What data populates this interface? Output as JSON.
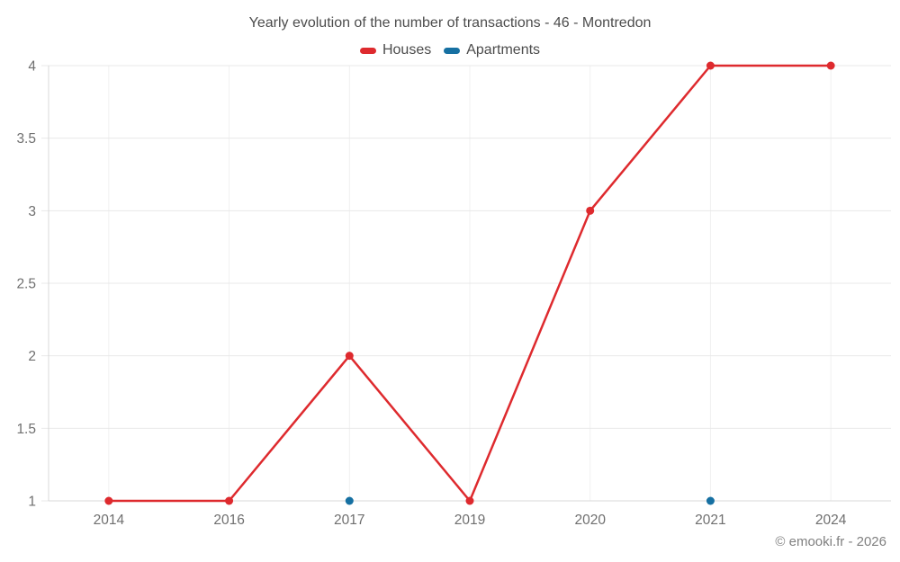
{
  "chart": {
    "watermark": "© emooki.fr - 2026"
  },
  "chart_data": {
    "type": "line",
    "title": "Yearly evolution of the number of transactions - 46 - Montredon",
    "categories": [
      "2014",
      "2016",
      "2017",
      "2019",
      "2020",
      "2021",
      "2024"
    ],
    "series": [
      {
        "name": "Houses",
        "color": "#de2a2e",
        "values": [
          1,
          1,
          2,
          1,
          3,
          4,
          4
        ]
      },
      {
        "name": "Apartments",
        "color": "#1670a2",
        "values": [
          null,
          null,
          1,
          null,
          null,
          1,
          null
        ]
      }
    ],
    "xlabel": "",
    "ylabel": "",
    "ylim": [
      1,
      4
    ],
    "yticks": [
      1,
      1.5,
      2,
      2.5,
      3,
      3.5,
      4
    ],
    "grid": true,
    "legend_position": "top",
    "colors": {
      "grid_horizontal": "#e9e9e9",
      "grid_vertical": "#f0f0f0",
      "axis": "#d9d9d9",
      "tick_label": "#6f6f6f",
      "title_text": "#4c4c4c",
      "watermark_text": "#808080"
    }
  }
}
